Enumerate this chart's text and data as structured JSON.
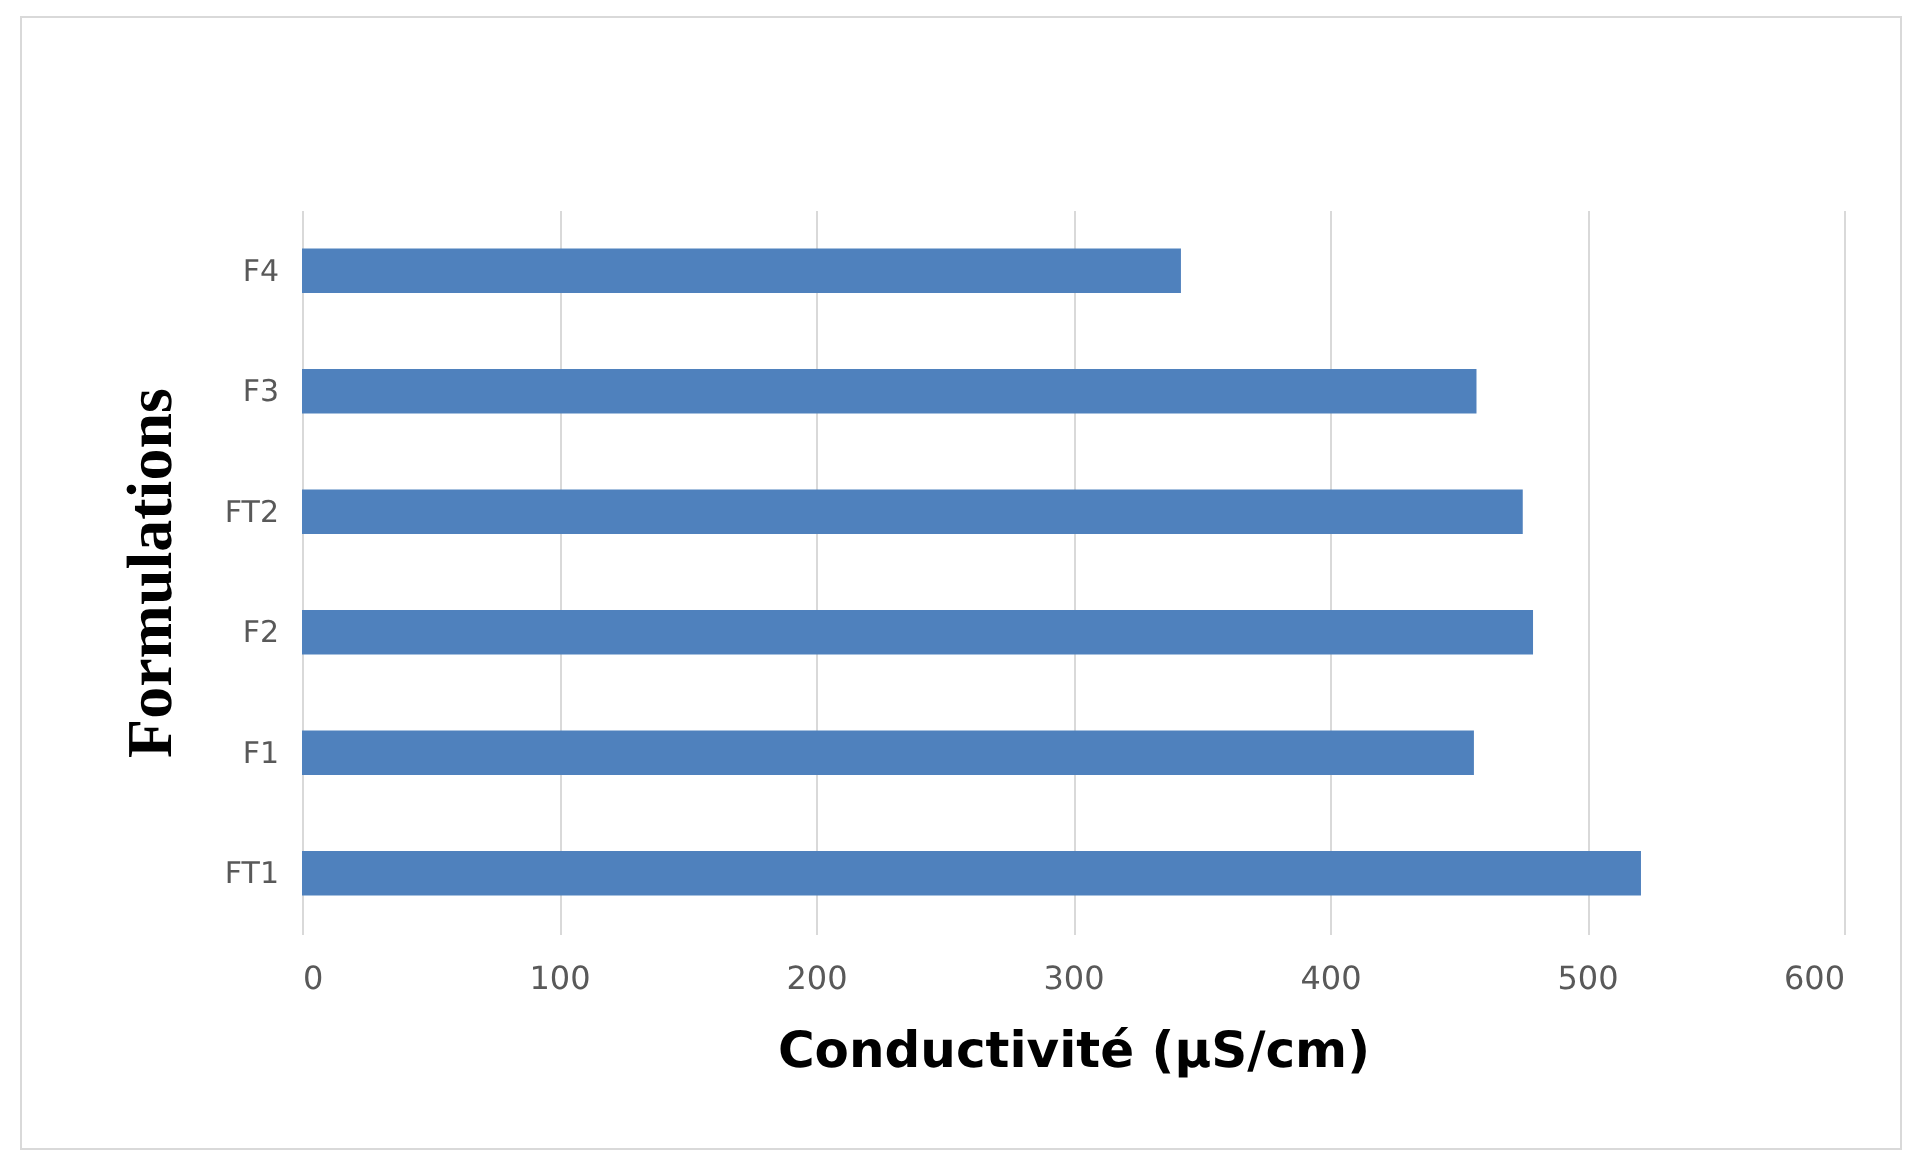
{
  "chart_data": {
    "type": "bar",
    "orientation": "horizontal",
    "xlabel": "Conductivité (µS/cm)",
    "ylabel": "Formulations",
    "categories": [
      "F4",
      "F3",
      "FT2",
      "F2",
      "F1",
      "FT1"
    ],
    "values": [
      342,
      457,
      475,
      479,
      456,
      521
    ],
    "color": "#4f81bd",
    "xlim": [
      0,
      600
    ],
    "xticks": [
      0,
      100,
      200,
      300,
      400,
      500,
      600
    ],
    "grid": "x"
  }
}
